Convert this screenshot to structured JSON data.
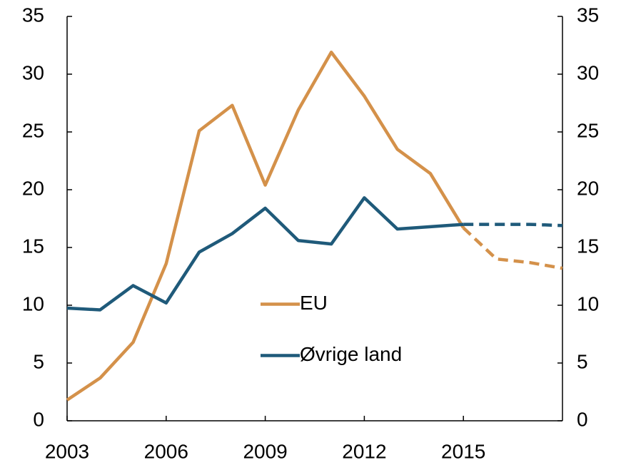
{
  "chart_data": {
    "type": "line",
    "x": [
      2003,
      2004,
      2005,
      2006,
      2007,
      2008,
      2009,
      2010,
      2011,
      2012,
      2013,
      2014,
      2015,
      2016,
      2017,
      2018
    ],
    "dashed_from": 2015,
    "series": [
      {
        "name": "EU",
        "color": "#d4914a",
        "values": [
          1.8,
          3.7,
          6.8,
          13.6,
          25.1,
          27.3,
          20.4,
          26.9,
          31.9,
          28.1,
          23.5,
          21.4,
          16.7,
          14.0,
          13.7,
          13.2
        ]
      },
      {
        "name": "Øvrige land",
        "color": "#1f5a7a",
        "values": [
          9.75,
          9.6,
          11.7,
          10.2,
          14.6,
          16.2,
          18.4,
          15.6,
          15.3,
          19.3,
          16.6,
          16.8,
          17.0,
          17.0,
          17.0,
          16.9
        ]
      }
    ],
    "xlim": [
      2003,
      2018
    ],
    "xticks": [
      2003,
      2006,
      2009,
      2012,
      2015
    ],
    "ylim": [
      0,
      35
    ],
    "yticks": [
      0,
      5,
      10,
      15,
      20,
      25,
      30,
      35
    ],
    "y2lim": [
      0,
      35
    ],
    "y2ticks": [
      0,
      5,
      10,
      15,
      20,
      25,
      30,
      35
    ],
    "grid": false,
    "legend": "center"
  }
}
